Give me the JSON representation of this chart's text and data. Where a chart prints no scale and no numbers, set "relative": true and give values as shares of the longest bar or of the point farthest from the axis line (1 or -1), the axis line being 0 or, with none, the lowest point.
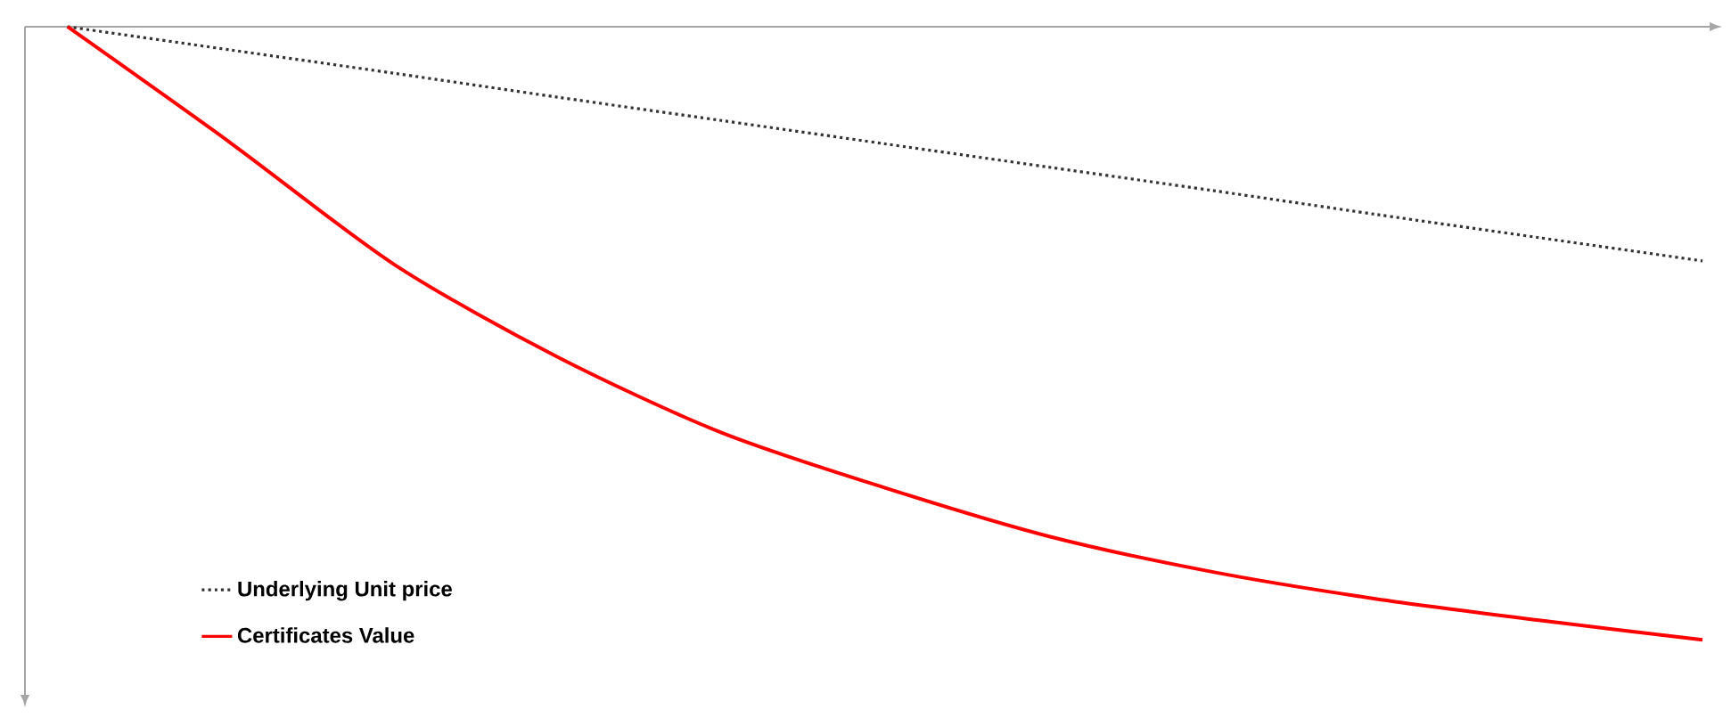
{
  "chart_data": {
    "type": "line",
    "relative": true,
    "legend": "bottom left",
    "marker": "none",
    "categories": [
      null,
      null,
      null,
      null,
      null,
      null,
      null,
      null,
      null,
      null,
      null
    ],
    "series": [
      {
        "name": "Underlying Unit price",
        "color": "#333333",
        "line_style": "dotted",
        "values": [
          0,
          -0.038,
          -0.076,
          -0.115,
          -0.153,
          -0.191,
          -0.229,
          -0.267,
          -0.306,
          -0.344,
          -0.382
        ]
      },
      {
        "name": "Certificates Value",
        "color": "#ff0000",
        "line_style": "solid",
        "values": [
          0,
          -0.19,
          -0.388,
          -0.539,
          -0.662,
          -0.752,
          -0.831,
          -0.889,
          -0.933,
          -0.968,
          -1
        ]
      }
    ]
  }
}
